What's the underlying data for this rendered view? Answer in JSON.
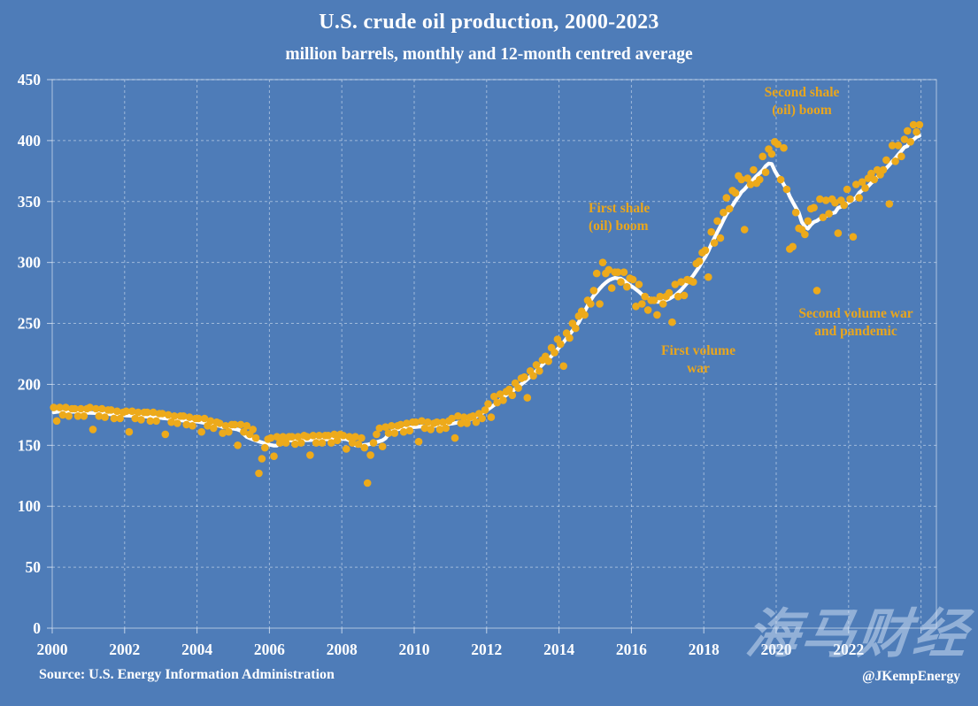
{
  "header": {
    "title": "U.S. crude oil production, 2000-2023",
    "subtitle": "million barrels, monthly and 12-month centred average"
  },
  "footer": {
    "source": "Source: U.S. Energy Information Administration",
    "handle": "@JKempEnergy"
  },
  "watermark": {
    "text": "海马财经"
  },
  "colors": {
    "background": "#4e7cb8",
    "dot": "#edaa1b",
    "average_line": "#ffffff",
    "grid": "rgba(240,245,252,0.5)",
    "axis_text": "#ffffff",
    "annotation": "#e9a61d"
  },
  "chart_data": {
    "type": "scatter",
    "title": "U.S. crude oil production, 2000-2023",
    "subtitle": "million barrels, monthly and 12-month centred average",
    "xlabel": "",
    "ylabel": "",
    "grid": "dashed, both axes",
    "legend": "none",
    "x_axis": {
      "ticks": [
        2000,
        2002,
        2004,
        2006,
        2008,
        2010,
        2012,
        2014,
        2016,
        2018,
        2020,
        2022
      ],
      "range": [
        2000,
        2024.4
      ]
    },
    "y_axis": {
      "ticks": [
        0,
        50,
        100,
        150,
        200,
        250,
        300,
        350,
        400,
        450
      ],
      "range": [
        0,
        450
      ]
    },
    "annotations": [
      {
        "text": "Second shale\n(oil) boom"
      },
      {
        "text": "First shale\n(oil) boom"
      },
      {
        "text": "First volume\nwar"
      },
      {
        "text": "Second volume war\nand pandemic"
      }
    ],
    "series": [
      {
        "name": "monthly production (million barrels)",
        "type": "scatter",
        "start_year": 2000,
        "frequency": "monthly",
        "values": [
          181,
          170,
          181,
          175,
          181,
          174,
          180,
          180,
          174,
          180,
          174,
          180,
          181,
          163,
          180,
          174,
          180,
          173,
          179,
          179,
          172,
          178,
          172,
          177,
          178,
          161,
          178,
          172,
          177,
          171,
          177,
          177,
          170,
          177,
          170,
          176,
          176,
          159,
          175,
          169,
          174,
          168,
          174,
          174,
          167,
          173,
          166,
          172,
          172,
          161,
          172,
          166,
          170,
          164,
          169,
          168,
          160,
          166,
          161,
          167,
          167,
          150,
          167,
          161,
          166,
          159,
          163,
          156,
          127,
          139,
          148,
          155,
          156,
          141,
          157,
          152,
          157,
          152,
          157,
          157,
          151,
          157,
          152,
          158,
          157,
          142,
          158,
          152,
          158,
          152,
          158,
          158,
          152,
          159,
          154,
          159,
          158,
          147,
          157,
          152,
          157,
          151,
          156,
          148,
          119,
          142,
          152,
          159,
          164,
          149,
          165,
          160,
          166,
          160,
          166,
          167,
          161,
          168,
          162,
          169,
          169,
          153,
          170,
          164,
          169,
          163,
          168,
          169,
          163,
          169,
          164,
          170,
          172,
          156,
          174,
          168,
          173,
          168,
          173,
          174,
          169,
          176,
          172,
          179,
          184,
          173,
          190,
          185,
          192,
          187,
          194,
          196,
          191,
          201,
          197,
          205,
          206,
          189,
          211,
          207,
          216,
          211,
          220,
          223,
          219,
          230,
          226,
          237,
          233,
          215,
          242,
          238,
          250,
          246,
          256,
          260,
          257,
          269,
          266,
          277,
          291,
          266,
          300,
          291,
          294,
          279,
          292,
          292,
          284,
          292,
          280,
          287,
          286,
          264,
          282,
          266,
          272,
          261,
          269,
          269,
          257,
          272,
          266,
          272,
          275,
          251,
          282,
          272,
          284,
          273,
          286,
          285,
          284,
          299,
          301,
          308,
          310,
          288,
          325,
          316,
          334,
          320,
          341,
          353,
          344,
          359,
          357,
          371,
          368,
          327,
          369,
          364,
          376,
          365,
          368,
          387,
          374,
          393,
          389,
          399,
          397,
          368,
          394,
          360,
          311,
          313,
          341,
          328,
          327,
          323,
          334,
          344,
          345,
          277,
          352,
          337,
          351,
          340,
          352,
          349,
          324,
          351,
          347,
          360,
          352,
          321,
          364,
          353,
          366,
          361,
          369,
          373,
          368,
          376,
          372,
          376,
          384,
          348,
          396,
          383,
          396,
          387,
          401,
          408,
          399,
          413,
          407,
          413
        ]
      },
      {
        "name": "12-month centred average",
        "type": "line",
        "derived_from": "centred 12-month moving average of the monthly series"
      }
    ]
  }
}
